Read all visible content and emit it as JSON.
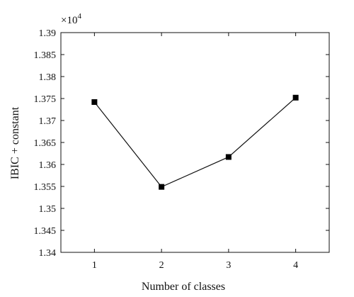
{
  "chart_data": {
    "type": "line",
    "x": [
      1,
      2,
      3,
      4
    ],
    "series": [
      {
        "values": [
          1.3742,
          1.3549,
          1.3617,
          1.3752
        ]
      }
    ],
    "xlabel": "Number of classes",
    "ylabel": "IBIC + constant",
    "y_multiplier": "×10",
    "y_multiplier_exp": "4",
    "xlim": [
      0.5,
      4.5
    ],
    "ylim": [
      1.34,
      1.39
    ],
    "xticks": [
      1,
      2,
      3,
      4
    ],
    "xtick_labels": [
      "1",
      "2",
      "3",
      "4"
    ],
    "yticks": [
      1.34,
      1.345,
      1.35,
      1.355,
      1.36,
      1.365,
      1.37,
      1.375,
      1.38,
      1.385,
      1.39
    ],
    "ytick_labels": [
      "1.34",
      "1.345",
      "1.35",
      "1.355",
      "1.36",
      "1.365",
      "1.37",
      "1.375",
      "1.38",
      "1.385",
      "1.39"
    ],
    "grid": false,
    "marker": "square",
    "colors": {
      "line": "#111111",
      "marker": "#000000"
    }
  }
}
